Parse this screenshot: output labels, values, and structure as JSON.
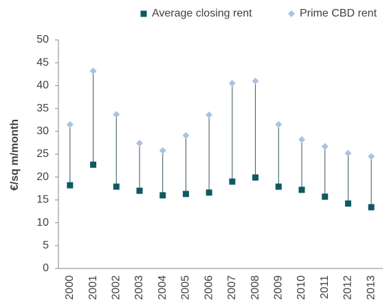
{
  "chart_data": {
    "type": "dot",
    "categories": [
      "2000",
      "2001",
      "2002",
      "2003",
      "2004",
      "2005",
      "2006",
      "2007",
      "2008",
      "2009",
      "2010",
      "2011",
      "2012",
      "2013"
    ],
    "series": [
      {
        "name": "Average closing rent",
        "color": "#0e5a62",
        "marker": "square",
        "values": [
          18.2,
          22.7,
          17.9,
          17.0,
          16.0,
          16.3,
          16.6,
          19.0,
          19.9,
          17.9,
          17.2,
          15.7,
          14.2,
          13.4
        ]
      },
      {
        "name": "Prime CBD rent",
        "color": "#a9c3e0",
        "marker": "diamond",
        "values": [
          31.5,
          43.2,
          33.7,
          27.4,
          25.8,
          29.1,
          33.6,
          40.5,
          41.0,
          31.5,
          28.2,
          26.7,
          25.2,
          24.5
        ]
      }
    ],
    "connector_color": "#35505c",
    "ylabel": "€/sq m/month",
    "ylim": [
      0,
      50
    ],
    "yticks": [
      0,
      5,
      10,
      15,
      20,
      25,
      30,
      35,
      40,
      45,
      50
    ],
    "legend": "top",
    "grid": false
  }
}
